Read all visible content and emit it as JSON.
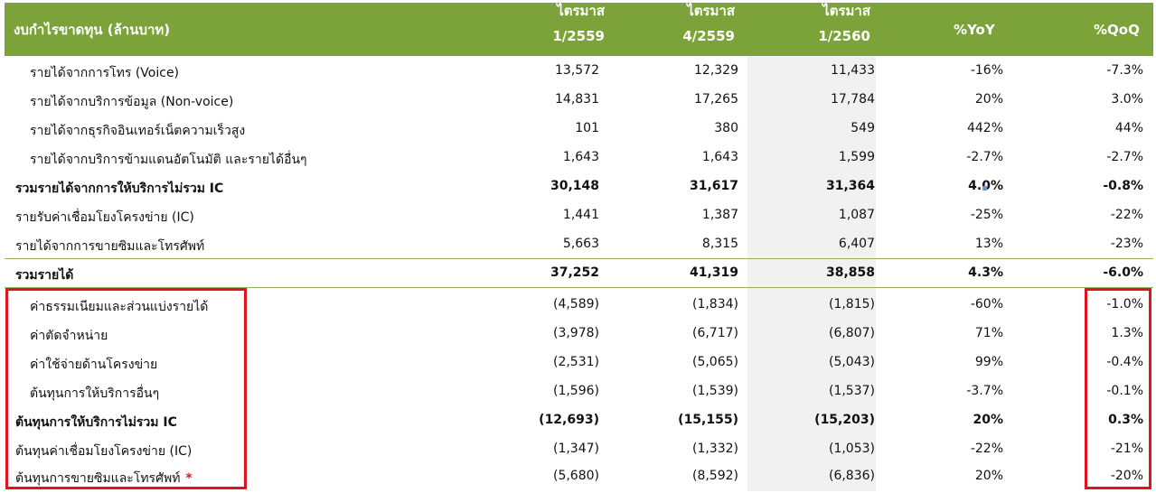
{
  "header": {
    "title": "งบกำไรขาดทุน (ล้านบาท)",
    "periods": [
      {
        "line1": "ไตรมาส",
        "line2": "1/2559"
      },
      {
        "line1": "ไตรมาส",
        "line2": "4/2559"
      },
      {
        "line1": "ไตรมาส",
        "line2": "1/2560"
      }
    ],
    "yoy": "%YoY",
    "qoq": "%QoQ"
  },
  "rows": [
    {
      "label": "รายได้จากการโทร (Voice)",
      "v1": "13,572",
      "v2": "12,329",
      "v3": "11,433",
      "yoy": "-16%",
      "qoq": "-7.3%"
    },
    {
      "label": "รายได้จากบริการข้อมูล (Non-voice)",
      "v1": "14,831",
      "v2": "17,265",
      "v3": "17,784",
      "yoy": "20%",
      "qoq": "3.0%"
    },
    {
      "label": "รายได้จากธุรกิจอินเทอร์เน็ตความเร็วสูง",
      "v1": "101",
      "v2": "380",
      "v3": "549",
      "yoy": "442%",
      "qoq": "44%"
    },
    {
      "label": "รายได้จากบริการข้ามแดนอัตโนมัติ และรายได้อื่นๆ",
      "v1": "1,643",
      "v2": "1,643",
      "v3": "1,599",
      "yoy": "-2.7%",
      "qoq": "-2.7%"
    },
    {
      "label": "รวมรายได้จากการให้บริการไม่รวม IC",
      "v1": "30,148",
      "v2": "31,617",
      "v3": "31,364",
      "yoy": "4.0%",
      "qoq": "-0.8%"
    },
    {
      "label": "รายรับค่าเชื่อมโยงโครงข่าย (IC)",
      "v1": "1,441",
      "v2": "1,387",
      "v3": "1,087",
      "yoy": "-25%",
      "qoq": "-22%"
    },
    {
      "label": "รายได้จากการขายซิมและโทรศัพท์",
      "v1": "5,663",
      "v2": "8,315",
      "v3": "6,407",
      "yoy": "13%",
      "qoq": "-23%"
    },
    {
      "label": "รวมรายได้",
      "v1": "37,252",
      "v2": "41,319",
      "v3": "38,858",
      "yoy": "4.3%",
      "qoq": "-6.0%"
    },
    {
      "label": "ค่าธรรมเนียมและส่วนแบ่งรายได้",
      "v1": "(4,589)",
      "v2": "(1,834)",
      "v3": "(1,815)",
      "yoy": "-60%",
      "qoq": "-1.0%"
    },
    {
      "label": "ค่าตัดจำหน่าย",
      "v1": "(3,978)",
      "v2": "(6,717)",
      "v3": "(6,807)",
      "yoy": "71%",
      "qoq": "1.3%"
    },
    {
      "label": "ค่าใช้จ่ายด้านโครงข่าย",
      "v1": "(2,531)",
      "v2": "(5,065)",
      "v3": "(5,043)",
      "yoy": "99%",
      "qoq": "-0.4%"
    },
    {
      "label": "ต้นทุนการให้บริการอื่นๆ",
      "v1": "(1,596)",
      "v2": "(1,539)",
      "v3": "(1,537)",
      "yoy": "-3.7%",
      "qoq": "-0.1%"
    },
    {
      "label": "ต้นทุนการให้บริการไม่รวม IC",
      "v1": "(12,693)",
      "v2": "(15,155)",
      "v3": "(15,203)",
      "yoy": "20%",
      "qoq": "0.3%"
    },
    {
      "label": "ต้นทุนค่าเชื่อมโยงโครงข่าย (IC)",
      "v1": "(1,347)",
      "v2": "(1,332)",
      "v3": "(1,053)",
      "yoy": "-22%",
      "qoq": "-21%"
    },
    {
      "label": "ต้นทุนการขายซิมและโทรศัพท์",
      "v1": "(5,680)",
      "v2": "(8,592)",
      "v3": "(6,836)",
      "yoy": "20%",
      "qoq": "-20%"
    }
  ],
  "star_symbol": "*",
  "colors": {
    "header_bg": "#7ba33a",
    "highlight": "#e0141e",
    "shade": "#f1f1f1"
  }
}
